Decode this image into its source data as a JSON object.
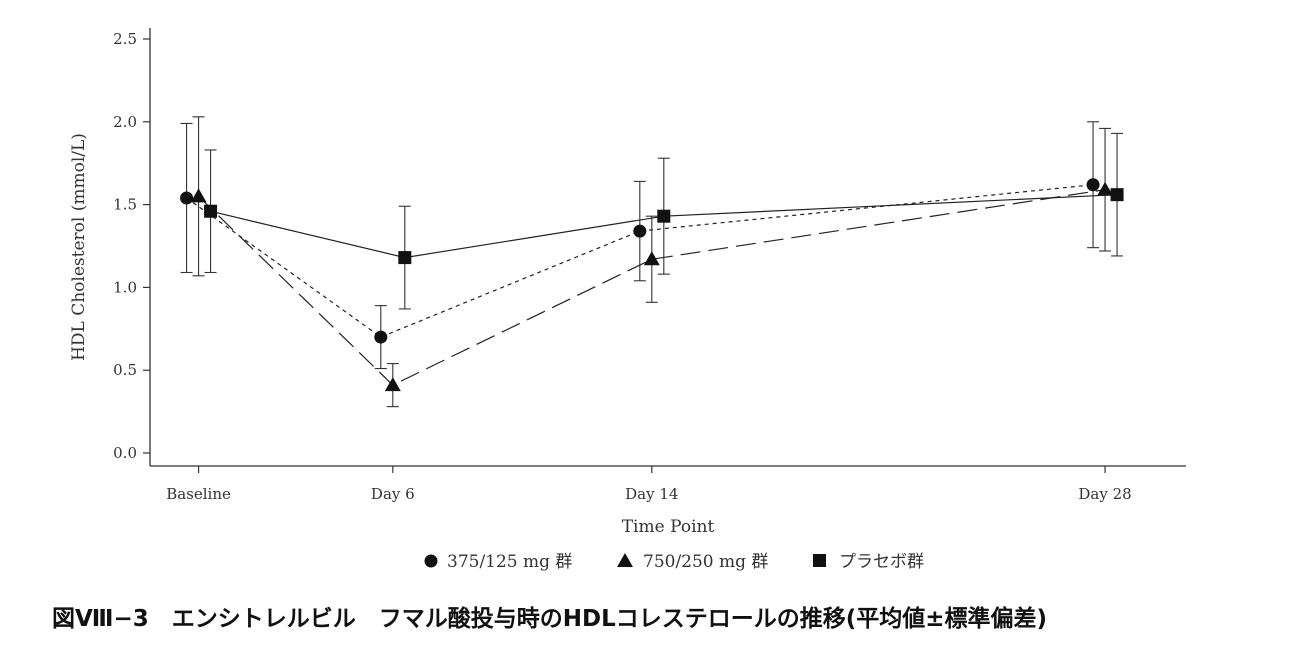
{
  "caption": "図Ⅷ−3　エンシトレルビル　フマル酸投与時のHDLコレステロールの推移(平均値±標準偏差)",
  "chart_data": {
    "type": "line",
    "title": "",
    "xlabel": "Time Point",
    "ylabel": "HDL Cholesterol (mmol/L)",
    "ylim": [
      0,
      2.5
    ],
    "yticks": [
      0.0,
      0.5,
      1.0,
      1.5,
      2.0,
      2.5
    ],
    "ytick_labels": [
      "0.0",
      "0.5",
      "1.0",
      "1.5",
      "2.0",
      "2.5"
    ],
    "x": [
      0,
      6,
      14,
      28
    ],
    "categories": [
      "Baseline",
      "Day 6",
      "Day 14",
      "Day 28"
    ],
    "xlim": [
      -1.5,
      30.5
    ],
    "grid": false,
    "legend_position": "bottom",
    "series": [
      {
        "name": "375/125 mg 群",
        "marker": "circle",
        "line_style": "dotted",
        "mean": [
          1.54,
          0.7,
          1.34,
          1.62
        ],
        "sd": [
          0.45,
          0.19,
          0.3,
          0.38
        ]
      },
      {
        "name": "750/250 mg 群",
        "marker": "triangle",
        "line_style": "long-dash",
        "mean": [
          1.55,
          0.41,
          1.17,
          1.59
        ],
        "sd": [
          0.48,
          0.13,
          0.26,
          0.37
        ]
      },
      {
        "name": "プラセボ群",
        "marker": "square",
        "line_style": "solid",
        "mean": [
          1.46,
          1.18,
          1.43,
          1.56
        ],
        "sd": [
          0.37,
          0.31,
          0.35,
          0.37
        ]
      }
    ]
  }
}
